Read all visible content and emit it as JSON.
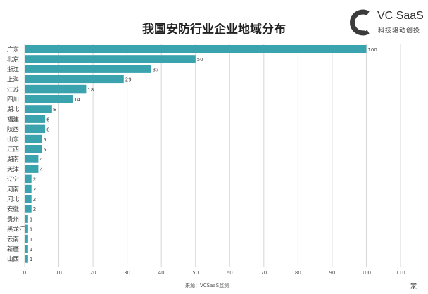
{
  "page": {
    "title": "我国安防行业企业地域分布",
    "logo_text": "VC SaaS",
    "logo_sub": "科技驱动创投",
    "source": "来源：VCSaaS监测",
    "unit": "家"
  },
  "colors": {
    "bar": "#3aa3ad",
    "logo": "#3b3b3b",
    "grid": "#d6d6d6"
  },
  "chart_data": {
    "type": "bar",
    "orientation": "horizontal",
    "title": "我国安防行业企业地域分布",
    "categories": [
      "广东",
      "北京",
      "浙江",
      "上海",
      "江苏",
      "四川",
      "湖北",
      "福建",
      "陕西",
      "山东",
      "江西",
      "湖南",
      "天津",
      "辽宁",
      "河南",
      "河北",
      "安徽",
      "贵州",
      "黑龙江",
      "云南",
      "新疆",
      "山西"
    ],
    "values": [
      100,
      50,
      37,
      29,
      18,
      14,
      8,
      6,
      6,
      5,
      5,
      4,
      4,
      2,
      2,
      2,
      2,
      1,
      1,
      1,
      1,
      1
    ],
    "xlim": [
      0,
      110
    ],
    "xticks": [
      0,
      10,
      20,
      30,
      40,
      50,
      60,
      70,
      80,
      90,
      100,
      110
    ],
    "xlabel": "家",
    "grid": true
  }
}
